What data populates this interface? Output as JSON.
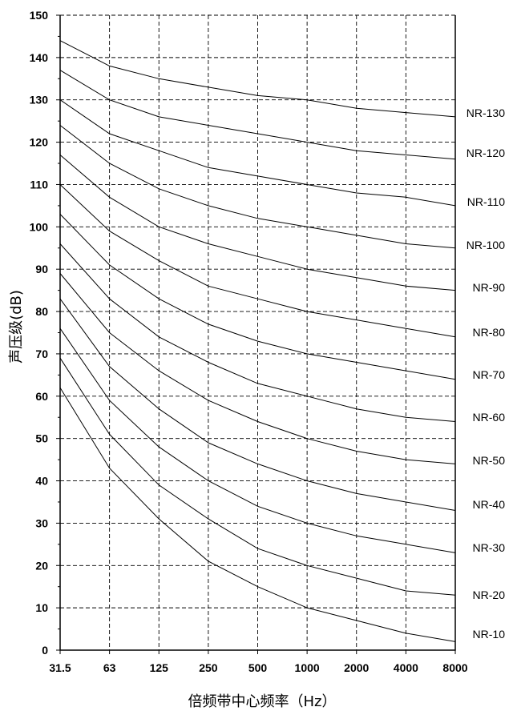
{
  "chart_data": {
    "type": "line",
    "xlabel": "倍频带中心频率（Hz）",
    "ylabel": "声压级(dB)",
    "categories": [
      "31.5",
      "63",
      "125",
      "250",
      "500",
      "1000",
      "2000",
      "4000",
      "8000"
    ],
    "ylim": [
      0,
      150
    ],
    "yticks": [
      "0",
      "10",
      "20",
      "30",
      "40",
      "50",
      "60",
      "70",
      "80",
      "90",
      "100",
      "110",
      "120",
      "130",
      "140",
      "150"
    ],
    "grid": true,
    "series": [
      {
        "name": "NR-130",
        "values": [
          144,
          138,
          135,
          133,
          131,
          130,
          128,
          127,
          126
        ]
      },
      {
        "name": "NR-120",
        "values": [
          137,
          130,
          126,
          124,
          122,
          120,
          118,
          117,
          116
        ]
      },
      {
        "name": "NR-110",
        "values": [
          130,
          122,
          118,
          114,
          112,
          110,
          108,
          107,
          105
        ]
      },
      {
        "name": "NR-100",
        "values": [
          124,
          115,
          109,
          105,
          102,
          100,
          98,
          96,
          95
        ]
      },
      {
        "name": "NR-90",
        "values": [
          117,
          107,
          100,
          96,
          93,
          90,
          88,
          86,
          85
        ]
      },
      {
        "name": "NR-80",
        "values": [
          110,
          99,
          92,
          86,
          83,
          80,
          78,
          76,
          74
        ]
      },
      {
        "name": "NR-70",
        "values": [
          103,
          91,
          83,
          77,
          73,
          70,
          68,
          66,
          64
        ]
      },
      {
        "name": "NR-60",
        "values": [
          96,
          83,
          74,
          68,
          63,
          60,
          57,
          55,
          54
        ]
      },
      {
        "name": "NR-50",
        "values": [
          89,
          75,
          66,
          59,
          54,
          50,
          47,
          45,
          44
        ]
      },
      {
        "name": "NR-40",
        "values": [
          83,
          67,
          57,
          49,
          44,
          40,
          37,
          35,
          33
        ]
      },
      {
        "name": "NR-30",
        "values": [
          76,
          59,
          48,
          40,
          34,
          30,
          27,
          25,
          23
        ]
      },
      {
        "name": "NR-20",
        "values": [
          69,
          51,
          39,
          31,
          24,
          20,
          17,
          14,
          13
        ]
      },
      {
        "name": "NR-10",
        "values": [
          62,
          43,
          31,
          21,
          15,
          10,
          7,
          4,
          2
        ]
      }
    ]
  }
}
